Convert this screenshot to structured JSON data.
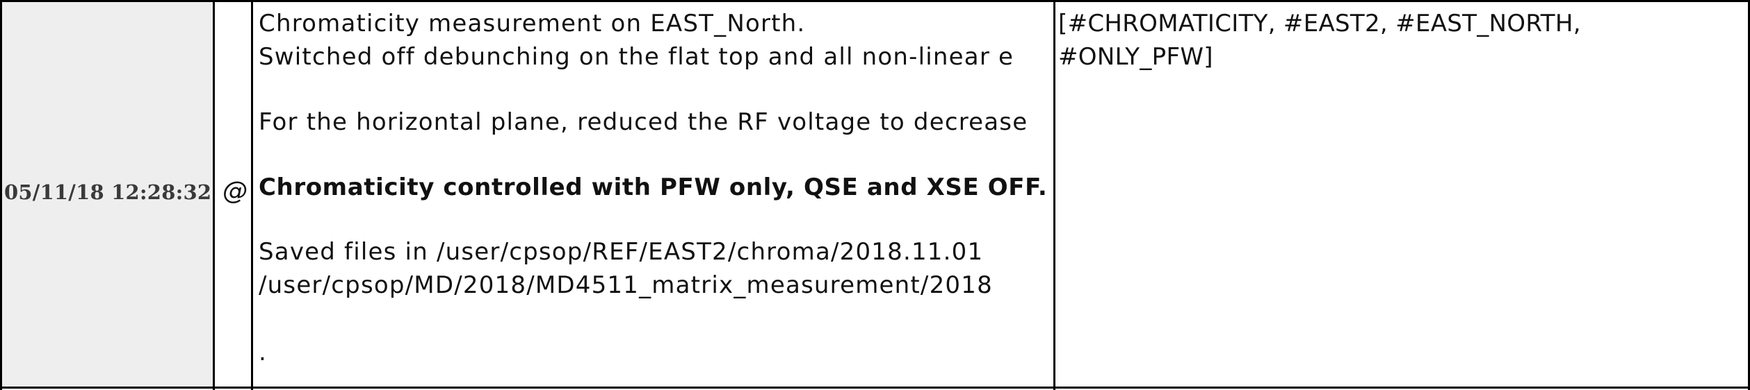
{
  "entry": {
    "datetime": "05/11/18 12:28:32",
    "attachment_icon": "at-sign-icon",
    "attachment_glyph": "@",
    "text": {
      "line1": "Chromaticity measurement on EAST_North.",
      "line2": "Switched off debunching on the flat top and all non-linear e",
      "line3": "For the horizontal plane, reduced the RF voltage to decrease",
      "line4": "Chromaticity controlled with PFW only, QSE and XSE OFF.",
      "line5": "Saved files in /user/cpsop/REF/EAST2/chroma/2018.11.01",
      "line6": "/user/cpsop/MD/2018/MD4511_matrix_measurement/2018",
      "line7": "."
    },
    "tags": {
      "line1": "[#CHROMATICITY, #EAST2, #EAST_NORTH,",
      "line2": "#ONLY_PFW]"
    }
  }
}
